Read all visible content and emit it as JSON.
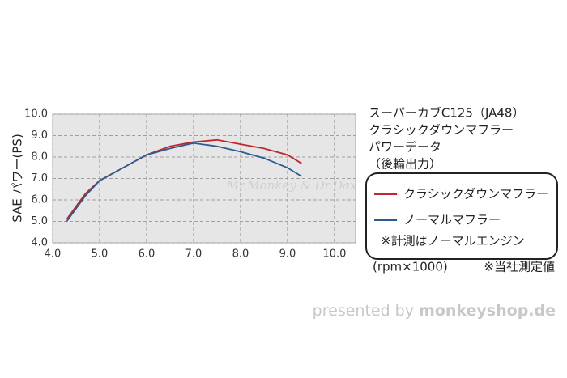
{
  "chart_data": {
    "type": "line",
    "title_lines": [
      "スーパーカブC125（JA48）",
      "クラシックダウンマフラー",
      "パワーデータ",
      "（後輪出力）"
    ],
    "ylabel": "SAE パワー(PS)",
    "xlabel": "(rpm×1000)",
    "note": "※計測はノーマルエンジン",
    "source_note": "※当社測定値",
    "watermark": "Mr.Monkey & Dr.Dax",
    "footer": [
      "presented by ",
      "monkeyshop.de"
    ],
    "x": [
      4.3,
      4.5,
      4.7,
      5.0,
      5.5,
      6.0,
      6.5,
      7.0,
      7.5,
      8.0,
      8.5,
      9.0,
      9.3
    ],
    "series": [
      {
        "name": "クラシックダウンマフラー",
        "color": "#c0272d",
        "values": [
          5.1,
          5.7,
          6.3,
          6.9,
          7.5,
          8.1,
          8.5,
          8.7,
          8.8,
          8.6,
          8.4,
          8.1,
          7.7
        ]
      },
      {
        "name": "ノーマルマフラー",
        "color": "#2a5d8f",
        "values": [
          5.0,
          5.6,
          6.2,
          6.9,
          7.5,
          8.1,
          8.4,
          8.65,
          8.5,
          8.25,
          7.95,
          7.5,
          7.1
        ]
      }
    ],
    "xlim": [
      4.0,
      10.45
    ],
    "ylim": [
      4.0,
      10.0
    ],
    "xticks": [
      {
        "value": 4,
        "label": "4.0"
      },
      {
        "value": 5,
        "label": "5.0"
      },
      {
        "value": 6,
        "label": "6.0"
      },
      {
        "value": 7,
        "label": "7.0"
      },
      {
        "value": 8,
        "label": "8.0"
      },
      {
        "value": 9,
        "label": "9.0"
      },
      {
        "value": 10,
        "label": "10.0"
      }
    ],
    "yticks": [
      {
        "value": 4,
        "label": "4.0"
      },
      {
        "value": 5,
        "label": "5.0"
      },
      {
        "value": 6,
        "label": "6.0"
      },
      {
        "value": 7,
        "label": "7.0"
      },
      {
        "value": 8,
        "label": "8.0"
      },
      {
        "value": 9,
        "label": "9.0"
      },
      {
        "value": 10,
        "label": "10.0"
      }
    ],
    "grid": true
  }
}
